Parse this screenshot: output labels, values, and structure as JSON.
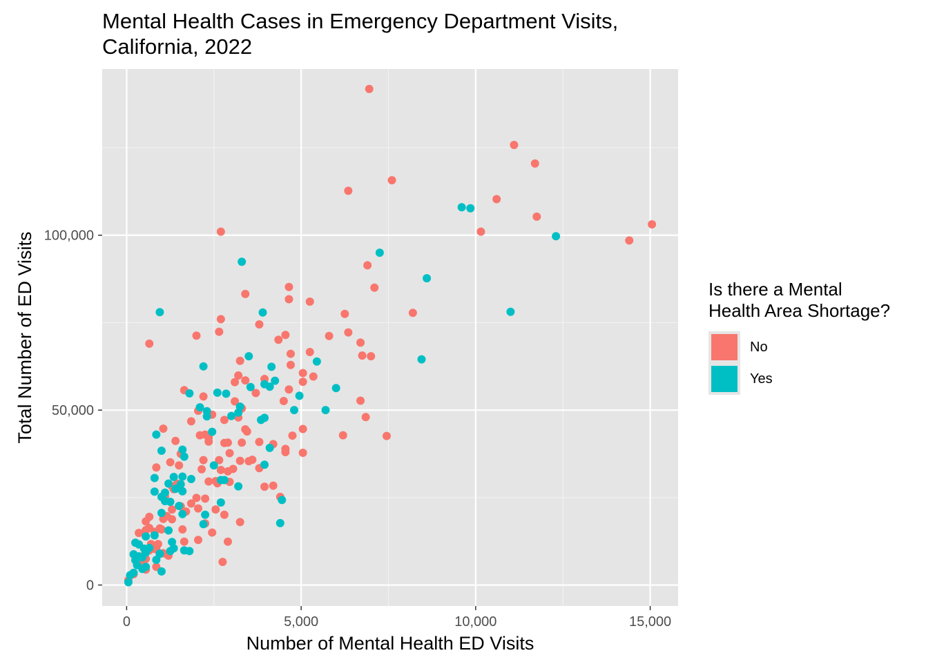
{
  "chart_data": {
    "type": "scatter",
    "title": "Mental Health Cases in Emergency Department Visits,\nCalifornia, 2022",
    "xlabel": "Number of Mental Health ED Visits",
    "ylabel": "Total Number of ED Visits",
    "xlim": [
      -700,
      15800
    ],
    "ylim": [
      -6000,
      147500
    ],
    "x_ticks": [
      0,
      5000,
      10000,
      15000
    ],
    "x_tick_labels": [
      "0",
      "5,000",
      "10,000",
      "15,000"
    ],
    "y_ticks": [
      0,
      50000,
      100000
    ],
    "y_tick_labels": [
      "0",
      "50,000",
      "100,000"
    ],
    "grid": true,
    "legend_title": "Is there a Mental\nHealth Area Shortage?",
    "legend_position": "right",
    "series": [
      {
        "name": "No",
        "color": "#F8766D",
        "points": [
          [
            6950,
            141800
          ],
          [
            11100,
            125800
          ],
          [
            11700,
            120500
          ],
          [
            7600,
            115700
          ],
          [
            6350,
            112700
          ],
          [
            10600,
            110300
          ],
          [
            11750,
            105300
          ],
          [
            15050,
            103100
          ],
          [
            10150,
            101000
          ],
          [
            14400,
            98500
          ],
          [
            2700,
            101000
          ],
          [
            6900,
            91400
          ],
          [
            7100,
            85000
          ],
          [
            4650,
            85200
          ],
          [
            3400,
            83200
          ],
          [
            4650,
            81700
          ],
          [
            5250,
            81000
          ],
          [
            8200,
            77800
          ],
          [
            6250,
            77500
          ],
          [
            2700,
            76000
          ],
          [
            3800,
            74500
          ],
          [
            6350,
            72200
          ],
          [
            2650,
            72400
          ],
          [
            2000,
            71300
          ],
          [
            4550,
            71500
          ],
          [
            4350,
            70100
          ],
          [
            5800,
            71200
          ],
          [
            6700,
            69300
          ],
          [
            650,
            69000
          ],
          [
            5250,
            66600
          ],
          [
            4700,
            66100
          ],
          [
            6750,
            65600
          ],
          [
            7000,
            65400
          ],
          [
            3250,
            64100
          ],
          [
            4700,
            62900
          ],
          [
            5050,
            60600
          ],
          [
            3200,
            59900
          ],
          [
            5350,
            59600
          ],
          [
            3400,
            58500
          ],
          [
            3950,
            58900
          ],
          [
            3100,
            58000
          ],
          [
            5050,
            58100
          ],
          [
            1650,
            55700
          ],
          [
            3700,
            54900
          ],
          [
            2050,
            49800
          ],
          [
            4500,
            52600
          ],
          [
            3100,
            52500
          ],
          [
            4650,
            55900
          ],
          [
            6700,
            52700
          ],
          [
            2200,
            53900
          ],
          [
            3300,
            50500
          ],
          [
            3200,
            47900
          ],
          [
            2800,
            47200
          ],
          [
            2450,
            48700
          ],
          [
            6850,
            48000
          ],
          [
            1850,
            46800
          ],
          [
            1050,
            44700
          ],
          [
            2250,
            43000
          ],
          [
            3400,
            44500
          ],
          [
            2350,
            42100
          ],
          [
            5050,
            44600
          ],
          [
            2100,
            42800
          ],
          [
            3450,
            43900
          ],
          [
            4750,
            42700
          ],
          [
            6200,
            42800
          ],
          [
            7450,
            42600
          ],
          [
            1400,
            41200
          ],
          [
            2900,
            40700
          ],
          [
            3800,
            40900
          ],
          [
            4200,
            40300
          ],
          [
            2350,
            41000
          ],
          [
            2800,
            40600
          ],
          [
            3300,
            40700
          ],
          [
            1550,
            37500
          ],
          [
            2950,
            37700
          ],
          [
            4550,
            38900
          ],
          [
            4550,
            38000
          ],
          [
            5050,
            37800
          ],
          [
            2200,
            35700
          ],
          [
            2650,
            35700
          ],
          [
            3500,
            35400
          ],
          [
            3600,
            35800
          ],
          [
            3250,
            35500
          ],
          [
            1250,
            35100
          ],
          [
            2700,
            32900
          ],
          [
            1500,
            34200
          ],
          [
            850,
            33600
          ],
          [
            3050,
            33200
          ],
          [
            2150,
            33100
          ],
          [
            3800,
            33400
          ],
          [
            2900,
            32500
          ],
          [
            1300,
            28200
          ],
          [
            1350,
            27400
          ],
          [
            2350,
            29600
          ],
          [
            2600,
            29100
          ],
          [
            2550,
            29700
          ],
          [
            2950,
            29500
          ],
          [
            1450,
            29000
          ],
          [
            3950,
            28100
          ],
          [
            4200,
            28400
          ],
          [
            1000,
            25200
          ],
          [
            1100,
            25400
          ],
          [
            2000,
            24900
          ],
          [
            2250,
            24700
          ],
          [
            1850,
            23300
          ],
          [
            4400,
            25200
          ],
          [
            1550,
            22500
          ],
          [
            1300,
            21600
          ],
          [
            2550,
            21600
          ],
          [
            1700,
            21000
          ],
          [
            2050,
            21900
          ],
          [
            2800,
            20100
          ],
          [
            1150,
            19700
          ],
          [
            1300,
            18800
          ],
          [
            650,
            19500
          ],
          [
            1050,
            18900
          ],
          [
            3250,
            18000
          ],
          [
            550,
            18200
          ],
          [
            2250,
            17600
          ],
          [
            1600,
            15900
          ],
          [
            2450,
            15000
          ],
          [
            550,
            15700
          ],
          [
            800,
            15200
          ],
          [
            950,
            16200
          ],
          [
            650,
            16300
          ],
          [
            350,
            14900
          ],
          [
            1000,
            15900
          ],
          [
            550,
            13900
          ],
          [
            2050,
            12900
          ],
          [
            1650,
            12400
          ],
          [
            2900,
            12400
          ],
          [
            700,
            11700
          ],
          [
            750,
            10400
          ],
          [
            900,
            11700
          ],
          [
            1050,
            9100
          ],
          [
            1150,
            8800
          ],
          [
            850,
            10200
          ],
          [
            450,
            8200
          ],
          [
            650,
            9900
          ],
          [
            1200,
            8400
          ],
          [
            350,
            8100
          ],
          [
            550,
            7500
          ],
          [
            400,
            6600
          ],
          [
            2750,
            6600
          ],
          [
            850,
            5200
          ],
          [
            550,
            4400
          ],
          [
            200,
            3100
          ],
          [
            50,
            1400
          ]
        ]
      },
      {
        "name": "Yes",
        "color": "#00BFC4",
        "points": [
          [
            9600,
            108000
          ],
          [
            9850,
            107700
          ],
          [
            12300,
            99700
          ],
          [
            7250,
            95000
          ],
          [
            3300,
            92400
          ],
          [
            8600,
            87700
          ],
          [
            950,
            78000
          ],
          [
            3900,
            77900
          ],
          [
            11000,
            78100
          ],
          [
            8450,
            64500
          ],
          [
            5450,
            63900
          ],
          [
            2200,
            62500
          ],
          [
            3500,
            65400
          ],
          [
            4150,
            62400
          ],
          [
            4250,
            58400
          ],
          [
            3950,
            57400
          ],
          [
            6000,
            56300
          ],
          [
            3550,
            56600
          ],
          [
            4100,
            56700
          ],
          [
            2600,
            55000
          ],
          [
            1800,
            54800
          ],
          [
            2850,
            54700
          ],
          [
            4950,
            54100
          ],
          [
            3250,
            51000
          ],
          [
            2100,
            50800
          ],
          [
            3200,
            49300
          ],
          [
            2300,
            49700
          ],
          [
            4800,
            50000
          ],
          [
            5700,
            50000
          ],
          [
            3000,
            48300
          ],
          [
            3950,
            47800
          ],
          [
            2300,
            48200
          ],
          [
            3850,
            47200
          ],
          [
            850,
            43000
          ],
          [
            2450,
            43800
          ],
          [
            1600,
            38700
          ],
          [
            1000,
            38400
          ],
          [
            4100,
            39200
          ],
          [
            1650,
            36700
          ],
          [
            3950,
            34400
          ],
          [
            2500,
            34200
          ],
          [
            1350,
            30900
          ],
          [
            1600,
            31000
          ],
          [
            1850,
            30300
          ],
          [
            800,
            30600
          ],
          [
            2700,
            30000
          ],
          [
            2800,
            30000
          ],
          [
            1200,
            29000
          ],
          [
            1400,
            27500
          ],
          [
            1600,
            26800
          ],
          [
            3200,
            28200
          ],
          [
            1550,
            28800
          ],
          [
            800,
            26700
          ],
          [
            1100,
            26400
          ],
          [
            1250,
            23800
          ],
          [
            1000,
            25200
          ],
          [
            2700,
            23600
          ],
          [
            1500,
            22600
          ],
          [
            1000,
            20600
          ],
          [
            1600,
            20300
          ],
          [
            2250,
            20100
          ],
          [
            1100,
            24000
          ],
          [
            4450,
            24300
          ],
          [
            2200,
            17400
          ],
          [
            4400,
            17700
          ],
          [
            1200,
            15600
          ],
          [
            800,
            14200
          ],
          [
            550,
            13900
          ],
          [
            1300,
            12300
          ],
          [
            250,
            12100
          ],
          [
            500,
            10400
          ],
          [
            350,
            11600
          ],
          [
            1650,
            9900
          ],
          [
            1800,
            9700
          ],
          [
            1350,
            10500
          ],
          [
            1250,
            9700
          ],
          [
            950,
            8900
          ],
          [
            550,
            9300
          ],
          [
            650,
            10600
          ],
          [
            350,
            8200
          ],
          [
            450,
            7900
          ],
          [
            250,
            7100
          ],
          [
            850,
            7200
          ],
          [
            950,
            9000
          ],
          [
            300,
            5700
          ],
          [
            550,
            5200
          ],
          [
            450,
            4600
          ],
          [
            1000,
            3900
          ],
          [
            200,
            3500
          ],
          [
            100,
            2800
          ],
          [
            50,
            800
          ],
          [
            200,
            8800
          ]
        ]
      }
    ]
  }
}
